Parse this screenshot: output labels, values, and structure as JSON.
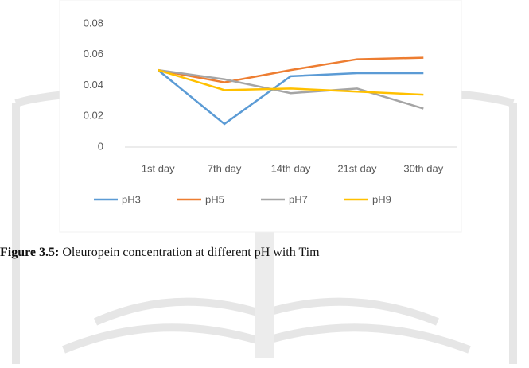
{
  "chart_data": {
    "type": "line",
    "categories": [
      "1st  day",
      "7th day",
      "14th day",
      "21st day",
      "30th day"
    ],
    "series": [
      {
        "name": "pH3",
        "color": "#5b9bd5",
        "values": [
          0.05,
          0.015,
          0.046,
          0.048,
          0.048
        ]
      },
      {
        "name": "pH5",
        "color": "#ed7d31",
        "values": [
          0.05,
          0.042,
          0.05,
          0.057,
          0.058
        ]
      },
      {
        "name": "pH7",
        "color": "#a5a5a5",
        "values": [
          0.05,
          0.044,
          0.035,
          0.038,
          0.025
        ]
      },
      {
        "name": "pH9",
        "color": "#ffc000",
        "values": [
          0.05,
          0.037,
          0.038,
          0.036,
          0.034
        ]
      }
    ],
    "ylim": [
      0,
      0.08
    ],
    "yticks": [
      0,
      0.02,
      0.04,
      0.06,
      0.08
    ],
    "grid": false,
    "legend": "bottom"
  },
  "caption": {
    "label": "Figure 3.5:",
    "text": "Oleuropein concentration at different pH with Tim"
  }
}
